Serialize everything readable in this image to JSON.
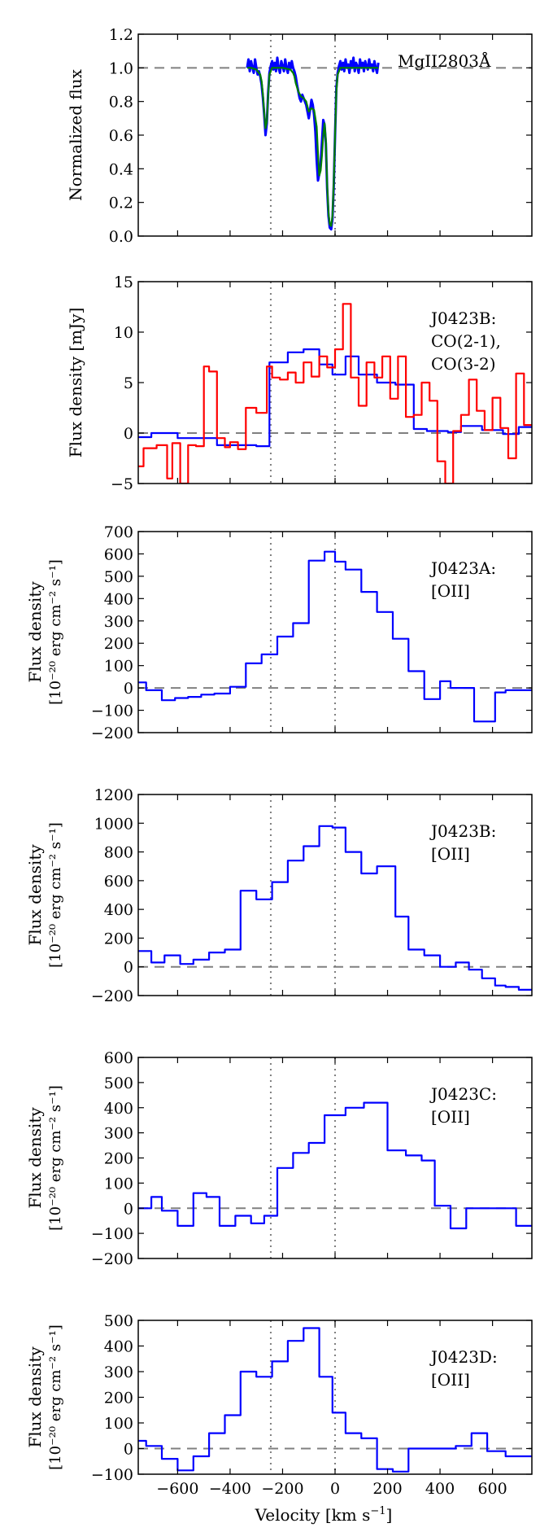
{
  "figure": {
    "xlabel": "Velocity [km s",
    "xlabel_sup": "−1",
    "xlabel_end": "]",
    "xlim": [
      -750,
      750
    ],
    "xticks": [
      -600,
      -400,
      -200,
      0,
      200,
      400,
      600
    ]
  },
  "chart_data": [
    {
      "type": "line",
      "id": "mgii",
      "ylabel_lines": [
        "Normalized flux"
      ],
      "ylim": [
        0.0,
        1.2
      ],
      "yticks": [
        0.0,
        0.2,
        0.4,
        0.6,
        0.8,
        1.0,
        1.2
      ],
      "ytick_labels": [
        "0.0",
        "0.2",
        "0.4",
        "0.6",
        "0.8",
        "1.0",
        "1.2"
      ],
      "hline": 1.0,
      "vlines": [
        -245,
        0
      ],
      "annotation": [
        "MgII2803Å"
      ],
      "series": [
        {
          "name": "data",
          "color": "#0000ff",
          "step": false,
          "x": [
            -335,
            -330,
            -325,
            -320,
            -315,
            -310,
            -305,
            -300,
            -295,
            -290,
            -285,
            -280,
            -275,
            -270,
            -265,
            -260,
            -255,
            -250,
            -245,
            -240,
            -235,
            -230,
            -225,
            -220,
            -215,
            -210,
            -205,
            -200,
            -195,
            -190,
            -185,
            -180,
            -175,
            -170,
            -165,
            -160,
            -155,
            -150,
            -145,
            -140,
            -135,
            -130,
            -125,
            -120,
            -115,
            -110,
            -105,
            -100,
            -95,
            -90,
            -85,
            -80,
            -75,
            -70,
            -65,
            -60,
            -55,
            -50,
            -45,
            -40,
            -35,
            -30,
            -25,
            -20,
            -15,
            -10,
            -5,
            0,
            5,
            10,
            15,
            20,
            25,
            30,
            35,
            40,
            45,
            50,
            55,
            60,
            65,
            70,
            75,
            80,
            85,
            90,
            95,
            100,
            105,
            110,
            115,
            120,
            125,
            130,
            135,
            140,
            145,
            150,
            155,
            160,
            165
          ],
          "y": [
            1.0,
            1.05,
            0.98,
            1.04,
            1.0,
            0.97,
            1.05,
            1.0,
            0.96,
            0.98,
            0.95,
            0.9,
            0.82,
            0.72,
            0.6,
            0.67,
            0.85,
            0.97,
            1.01,
            1.04,
            0.99,
            1.03,
            0.98,
            1.06,
            1.0,
            0.97,
            1.04,
            1.01,
            0.98,
            1.05,
            1.0,
            0.97,
            1.03,
            0.99,
            1.04,
            1.0,
            0.98,
            0.95,
            0.9,
            0.86,
            0.82,
            0.8,
            0.84,
            0.82,
            0.8,
            0.78,
            0.74,
            0.7,
            0.75,
            0.81,
            0.78,
            0.72,
            0.62,
            0.45,
            0.33,
            0.37,
            0.43,
            0.56,
            0.69,
            0.66,
            0.55,
            0.28,
            0.12,
            0.05,
            0.04,
            0.1,
            0.3,
            0.6,
            0.88,
            0.97,
            1.01,
            1.04,
            0.99,
            1.03,
            0.98,
            1.05,
            1.0,
            1.02,
            0.97,
            1.04,
            1.0,
            1.06,
            0.98,
            1.03,
            1.01,
            0.97,
            1.05,
            1.0,
            1.03,
            0.98,
            1.04,
            1.01,
            0.99,
            1.05,
            1.0,
            1.02,
            0.98,
            1.04,
            1.0,
            0.97,
            1.03
          ]
        },
        {
          "name": "fit",
          "color": "#008000",
          "step": false,
          "x": [
            -335,
            -320,
            -300,
            -285,
            -280,
            -275,
            -270,
            -265,
            -260,
            -255,
            -250,
            -240,
            -230,
            -200,
            -170,
            -160,
            -155,
            -150,
            -140,
            -130,
            -120,
            -110,
            -100,
            -90,
            -80,
            -70,
            -65,
            -60,
            -55,
            -50,
            -45,
            -40,
            -35,
            -30,
            -25,
            -20,
            -15,
            -10,
            -5,
            0,
            5,
            10,
            20,
            30,
            60,
            100,
            165
          ],
          "y": [
            1.0,
            1.0,
            0.99,
            0.96,
            0.92,
            0.84,
            0.73,
            0.64,
            0.68,
            0.84,
            0.96,
            1.0,
            1.0,
            1.0,
            0.99,
            0.97,
            0.95,
            0.91,
            0.86,
            0.83,
            0.82,
            0.8,
            0.74,
            0.76,
            0.75,
            0.65,
            0.49,
            0.36,
            0.39,
            0.48,
            0.6,
            0.67,
            0.57,
            0.3,
            0.14,
            0.07,
            0.06,
            0.12,
            0.32,
            0.6,
            0.86,
            0.96,
            1.0,
            1.0,
            1.0,
            1.0,
            1.0
          ]
        }
      ]
    },
    {
      "type": "line",
      "id": "co",
      "ylabel_lines": [
        "Flux density [mJy]"
      ],
      "ylim": [
        -5,
        15
      ],
      "yticks": [
        -5,
        0,
        5,
        10,
        15
      ],
      "ytick_labels": [
        "−5",
        "0",
        "5",
        "10",
        "15"
      ],
      "hline": 0,
      "vlines": [
        -245,
        0
      ],
      "annotation": [
        "J0423B:",
        "CO(2-1),",
        "CO(3-2)"
      ],
      "series": [
        {
          "name": "CO(2-1)",
          "color": "#0000ff",
          "step": true,
          "edges": [
            -750,
            -700,
            -600,
            -450,
            -300,
            -250,
            -180,
            -120,
            -60,
            -10,
            40,
            90,
            160,
            230,
            300,
            350,
            430,
            480,
            560,
            640,
            700,
            750
          ],
          "values": [
            -0.4,
            0.0,
            -0.5,
            -1.2,
            -1.3,
            7.0,
            8.0,
            8.3,
            6.8,
            5.8,
            7.6,
            5.8,
            5.0,
            4.8,
            0.4,
            0.2,
            0.1,
            0.7,
            0.3,
            -0.1,
            0.6
          ]
        },
        {
          "name": "CO(3-2)",
          "color": "#ff0000",
          "step": true,
          "edges": [
            -750,
            -730,
            -680,
            -640,
            -620,
            -590,
            -560,
            -530,
            -500,
            -480,
            -450,
            -420,
            -400,
            -370,
            -340,
            -300,
            -260,
            -240,
            -210,
            -180,
            -150,
            -120,
            -90,
            -60,
            -30,
            0,
            30,
            60,
            90,
            120,
            150,
            180,
            210,
            240,
            270,
            300,
            330,
            360,
            390,
            420,
            450,
            480,
            510,
            540,
            570,
            600,
            630,
            660,
            690,
            720,
            750
          ],
          "values": [
            -3.3,
            -1.5,
            -1.2,
            -4.5,
            -1.0,
            -5.0,
            -1.2,
            -1.3,
            6.6,
            6.1,
            -0.5,
            -1.4,
            -0.9,
            -1.6,
            2.5,
            2.0,
            6.6,
            5.5,
            5.3,
            6.0,
            5.0,
            7.0,
            5.6,
            7.6,
            6.5,
            8.3,
            12.8,
            5.5,
            2.7,
            7.0,
            5.5,
            7.6,
            3.4,
            7.6,
            1.6,
            1.8,
            5.0,
            3.2,
            -2.8,
            -5.0,
            0.2,
            1.8,
            5.3,
            2.2,
            0.3,
            3.5,
            0.5,
            -2.5,
            5.9,
            0.8
          ]
        }
      ]
    },
    {
      "type": "line",
      "id": "a",
      "ylabel_lines": [
        "Flux density",
        "[10⁻²⁰ erg cm⁻² s⁻¹]"
      ],
      "ylim": [
        -200,
        700
      ],
      "yticks": [
        -200,
        -100,
        0,
        100,
        200,
        300,
        400,
        500,
        600,
        700
      ],
      "ytick_labels": [
        "−200",
        "−100",
        "0",
        "100",
        "200",
        "300",
        "400",
        "500",
        "600",
        "700"
      ],
      "hline": 0,
      "vlines": [
        -245,
        0
      ],
      "annotation": [
        "J0423A:",
        "[OII]"
      ],
      "series": [
        {
          "name": "J0423A [OII]",
          "color": "#0000ff",
          "step": true,
          "edges": [
            -750,
            -720,
            -660,
            -610,
            -560,
            -510,
            -460,
            -400,
            -340,
            -280,
            -220,
            -160,
            -100,
            -40,
            0,
            40,
            100,
            160,
            220,
            280,
            340,
            400,
            440,
            480,
            530,
            610,
            650,
            750
          ],
          "values": [
            25,
            -10,
            -55,
            -45,
            -40,
            -30,
            -25,
            5,
            110,
            150,
            230,
            290,
            570,
            610,
            565,
            530,
            430,
            340,
            220,
            75,
            -50,
            30,
            0,
            0,
            -150,
            -20,
            -10
          ]
        }
      ]
    },
    {
      "type": "line",
      "id": "b",
      "ylabel_lines": [
        "Flux density",
        "[10⁻²⁰ erg cm⁻² s⁻¹]"
      ],
      "ylim": [
        -200,
        1200
      ],
      "yticks": [
        -200,
        0,
        200,
        400,
        600,
        800,
        1000,
        1200
      ],
      "ytick_labels": [
        "−200",
        "0",
        "200",
        "400",
        "600",
        "800",
        "1000",
        "1200"
      ],
      "hline": 0,
      "vlines": [
        -245,
        0
      ],
      "annotation": [
        "J0423B:",
        "[OII]"
      ],
      "series": [
        {
          "name": "J0423B [OII]",
          "color": "#0000ff",
          "step": true,
          "edges": [
            -750,
            -700,
            -650,
            -590,
            -540,
            -480,
            -420,
            -360,
            -300,
            -240,
            -180,
            -120,
            -60,
            -10,
            40,
            100,
            160,
            230,
            280,
            340,
            400,
            460,
            510,
            560,
            610,
            650,
            700,
            750
          ],
          "values": [
            110,
            30,
            80,
            20,
            50,
            100,
            120,
            530,
            470,
            590,
            740,
            840,
            980,
            970,
            800,
            650,
            700,
            350,
            120,
            80,
            0,
            30,
            -20,
            -80,
            -130,
            -140,
            -160
          ]
        }
      ]
    },
    {
      "type": "line",
      "id": "c",
      "ylabel_lines": [
        "Flux density",
        "[10⁻²⁰ erg cm⁻² s⁻¹]"
      ],
      "ylim": [
        -200,
        600
      ],
      "yticks": [
        -200,
        -100,
        0,
        100,
        200,
        300,
        400,
        500,
        600
      ],
      "ytick_labels": [
        "−200",
        "−100",
        "0",
        "100",
        "200",
        "300",
        "400",
        "500",
        "600"
      ],
      "hline": 0,
      "vlines": [
        -245,
        0
      ],
      "annotation": [
        "J0423C:",
        "[OII]"
      ],
      "series": [
        {
          "name": "J0423C [OII]",
          "color": "#0000ff",
          "step": true,
          "edges": [
            -750,
            -700,
            -660,
            -600,
            -540,
            -490,
            -440,
            -380,
            -320,
            -270,
            -220,
            -160,
            -100,
            -40,
            40,
            110,
            200,
            270,
            330,
            380,
            440,
            500,
            560,
            620,
            690,
            750
          ],
          "values": [
            0,
            45,
            -10,
            -70,
            60,
            45,
            -70,
            -30,
            -60,
            -30,
            160,
            220,
            260,
            370,
            400,
            420,
            230,
            210,
            190,
            10,
            -80,
            0,
            0,
            0,
            -70
          ]
        }
      ]
    },
    {
      "type": "line",
      "id": "d",
      "ylabel_lines": [
        "Flux density",
        "[10⁻²⁰ erg cm⁻² s⁻¹]"
      ],
      "ylim": [
        -100,
        500
      ],
      "yticks": [
        -100,
        0,
        100,
        200,
        300,
        400,
        500
      ],
      "ytick_labels": [
        "−100",
        "0",
        "100",
        "200",
        "300",
        "400",
        "500"
      ],
      "hline": 0,
      "vlines": [
        -245,
        0
      ],
      "annotation": [
        "J0423D:",
        "[OII]"
      ],
      "series": [
        {
          "name": "J0423D [OII]",
          "color": "#0000ff",
          "step": true,
          "edges": [
            -750,
            -720,
            -660,
            -600,
            -540,
            -480,
            -420,
            -360,
            -300,
            -240,
            -180,
            -120,
            -60,
            -10,
            40,
            100,
            160,
            220,
            280,
            340,
            400,
            460,
            520,
            580,
            650,
            720,
            750
          ],
          "values": [
            30,
            10,
            -40,
            -85,
            -30,
            60,
            130,
            300,
            280,
            340,
            420,
            470,
            280,
            140,
            60,
            40,
            -80,
            -90,
            0,
            0,
            0,
            10,
            60,
            -10,
            -30,
            -30
          ]
        }
      ]
    }
  ]
}
